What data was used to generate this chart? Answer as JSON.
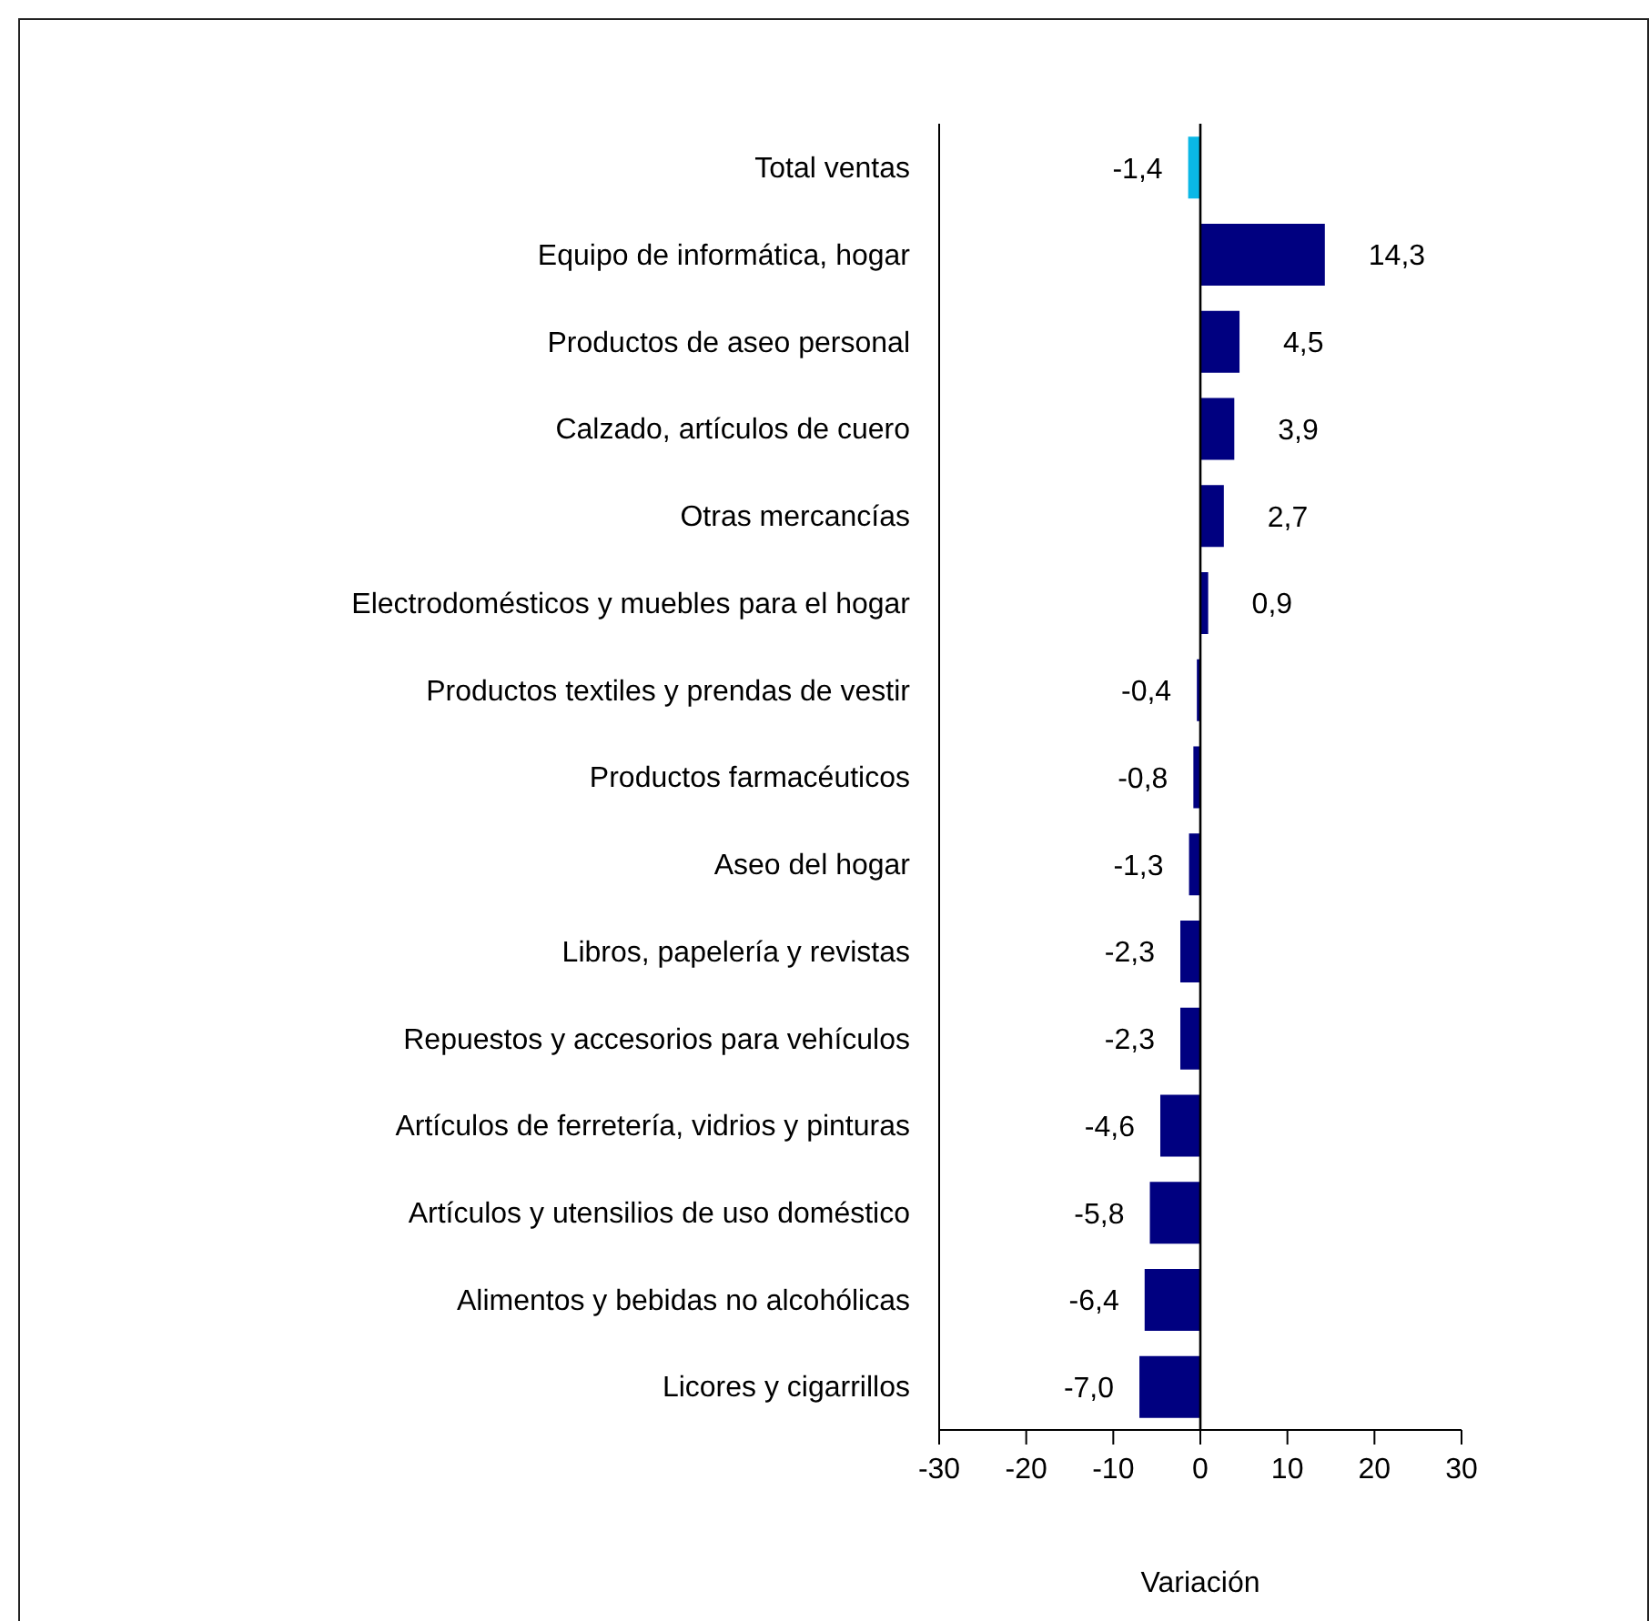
{
  "chart_data": {
    "type": "bar",
    "orientation": "horizontal",
    "xlabel": "Variación",
    "categories": [
      "Total ventas",
      "Equipo de informática, hogar",
      "Productos de aseo personal",
      "Calzado, artículos de cuero",
      "Otras mercancías",
      "Electrodomésticos y muebles para el hogar",
      "Productos textiles y prendas de vestir",
      "Productos farmacéuticos",
      "Aseo del hogar",
      "Libros, papelería y revistas",
      "Repuestos y accesorios para vehículos",
      "Artículos de ferretería, vidrios y pinturas",
      "Artículos y utensilios de uso doméstico",
      "Alimentos y bebidas no alcohólicas",
      "Licores y cigarrillos"
    ],
    "values": [
      -1.4,
      14.3,
      4.5,
      3.9,
      2.7,
      0.9,
      -0.4,
      -0.8,
      -1.3,
      -2.3,
      -2.3,
      -4.6,
      -5.8,
      -6.4,
      -7.0
    ],
    "colors": [
      "#0ab8e6",
      "#000080",
      "#000080",
      "#000080",
      "#000080",
      "#000080",
      "#000080",
      "#000080",
      "#000080",
      "#000080",
      "#000080",
      "#000080",
      "#000080",
      "#000080",
      "#000080"
    ],
    "value_labels": [
      "-1,4",
      "14,3",
      "4,5",
      "3,9",
      "2,7",
      "0,9",
      "-0,4",
      "-0,8",
      "-1,3",
      "-2,3",
      "-2,3",
      "-4,6",
      "-5,8",
      "-6,4",
      "-7,0"
    ],
    "xlim": [
      -30,
      30
    ],
    "xticks": [
      -30,
      -20,
      -10,
      0,
      10,
      20,
      30
    ],
    "ref_lines": [
      {
        "axis": "x",
        "value": 0
      }
    ]
  }
}
